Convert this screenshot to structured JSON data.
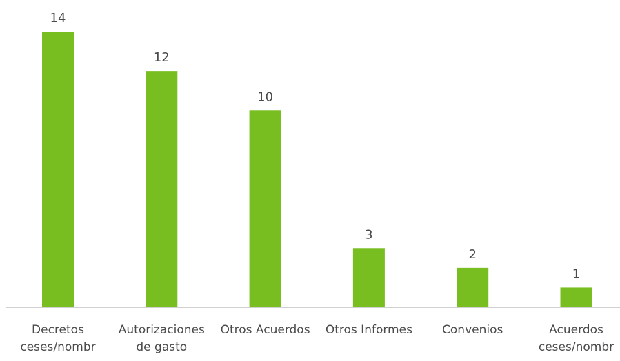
{
  "chart_data": {
    "type": "bar",
    "categories": [
      [
        "Decretos",
        "ceses/nombr"
      ],
      [
        "Autorizaciones",
        "de gasto"
      ],
      [
        "Otros Acuerdos"
      ],
      [
        "Otros Informes"
      ],
      [
        "Convenios"
      ],
      [
        "Acuerdos",
        "ceses/nombr"
      ]
    ],
    "values": [
      14,
      12,
      10,
      3,
      2,
      1
    ],
    "data_labels": [
      "14",
      "12",
      "10",
      "3",
      "2",
      "1"
    ],
    "title": "",
    "xlabel": "",
    "ylabel": "",
    "ylim": [
      0,
      14
    ],
    "grid": false,
    "legend": "none",
    "colors": {
      "bar": "#78BE20",
      "axis": "#d0d0d0",
      "text": "#4a4a4a"
    }
  }
}
